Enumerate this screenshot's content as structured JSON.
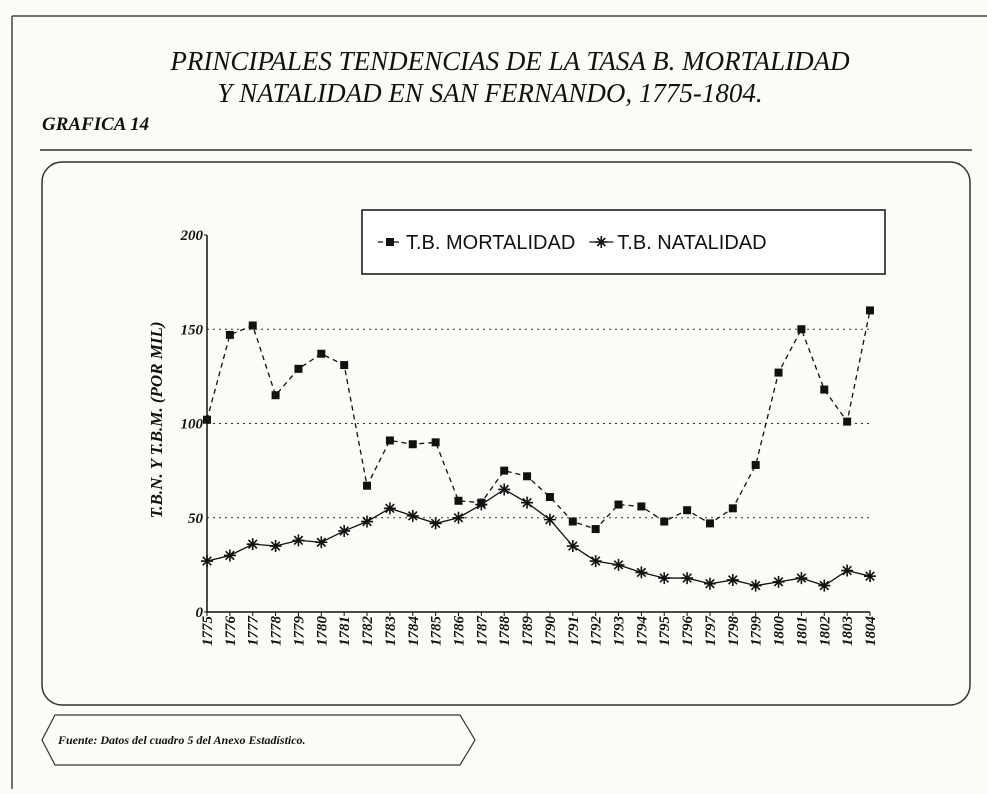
{
  "chart_data": {
    "type": "line",
    "title": [
      "PRINCIPALES TENDENCIAS DE LA TASA B. MORTALIDAD",
      "Y NATALIDAD EN SAN FERNANDO, 1775-1804."
    ],
    "subtitle": "GRAFICA 14",
    "y_label": "T.B.N. Y T.B.M. (POR MIL)",
    "source": "Fuente: Datos del cuadro 5 del Anexo Estadístico.",
    "categories": [
      "1775",
      "1776",
      "1777",
      "1778",
      "1779",
      "1780",
      "1781",
      "1782",
      "1783",
      "1784",
      "1785",
      "1786",
      "1787",
      "1788",
      "1789",
      "1790",
      "1791",
      "1792",
      "1793",
      "1794",
      "1795",
      "1796",
      "1797",
      "1798",
      "1799",
      "1800",
      "1801",
      "1802",
      "1803",
      "1804"
    ],
    "series": [
      {
        "name": "T.B. MORTALIDAD",
        "color": "#111111",
        "marker": "square",
        "dash": true,
        "values": [
          102,
          147,
          152,
          115,
          129,
          137,
          131,
          67,
          91,
          89,
          90,
          59,
          58,
          75,
          72,
          61,
          48,
          44,
          57,
          56,
          48,
          54,
          47,
          55,
          78,
          127,
          150,
          118,
          101,
          160
        ]
      },
      {
        "name": "T.B. NATALIDAD",
        "color": "#111111",
        "marker": "asterisk",
        "dash": false,
        "values": [
          27,
          30,
          36,
          35,
          38,
          37,
          43,
          48,
          55,
          51,
          47,
          50,
          57,
          65,
          58,
          49,
          35,
          27,
          25,
          21,
          18,
          18,
          15,
          17,
          14,
          16,
          18,
          14,
          22,
          19
        ]
      }
    ],
    "ylim": [
      0,
      200
    ],
    "yticks": [
      0,
      50,
      100,
      150,
      200
    ],
    "grid": true
  }
}
